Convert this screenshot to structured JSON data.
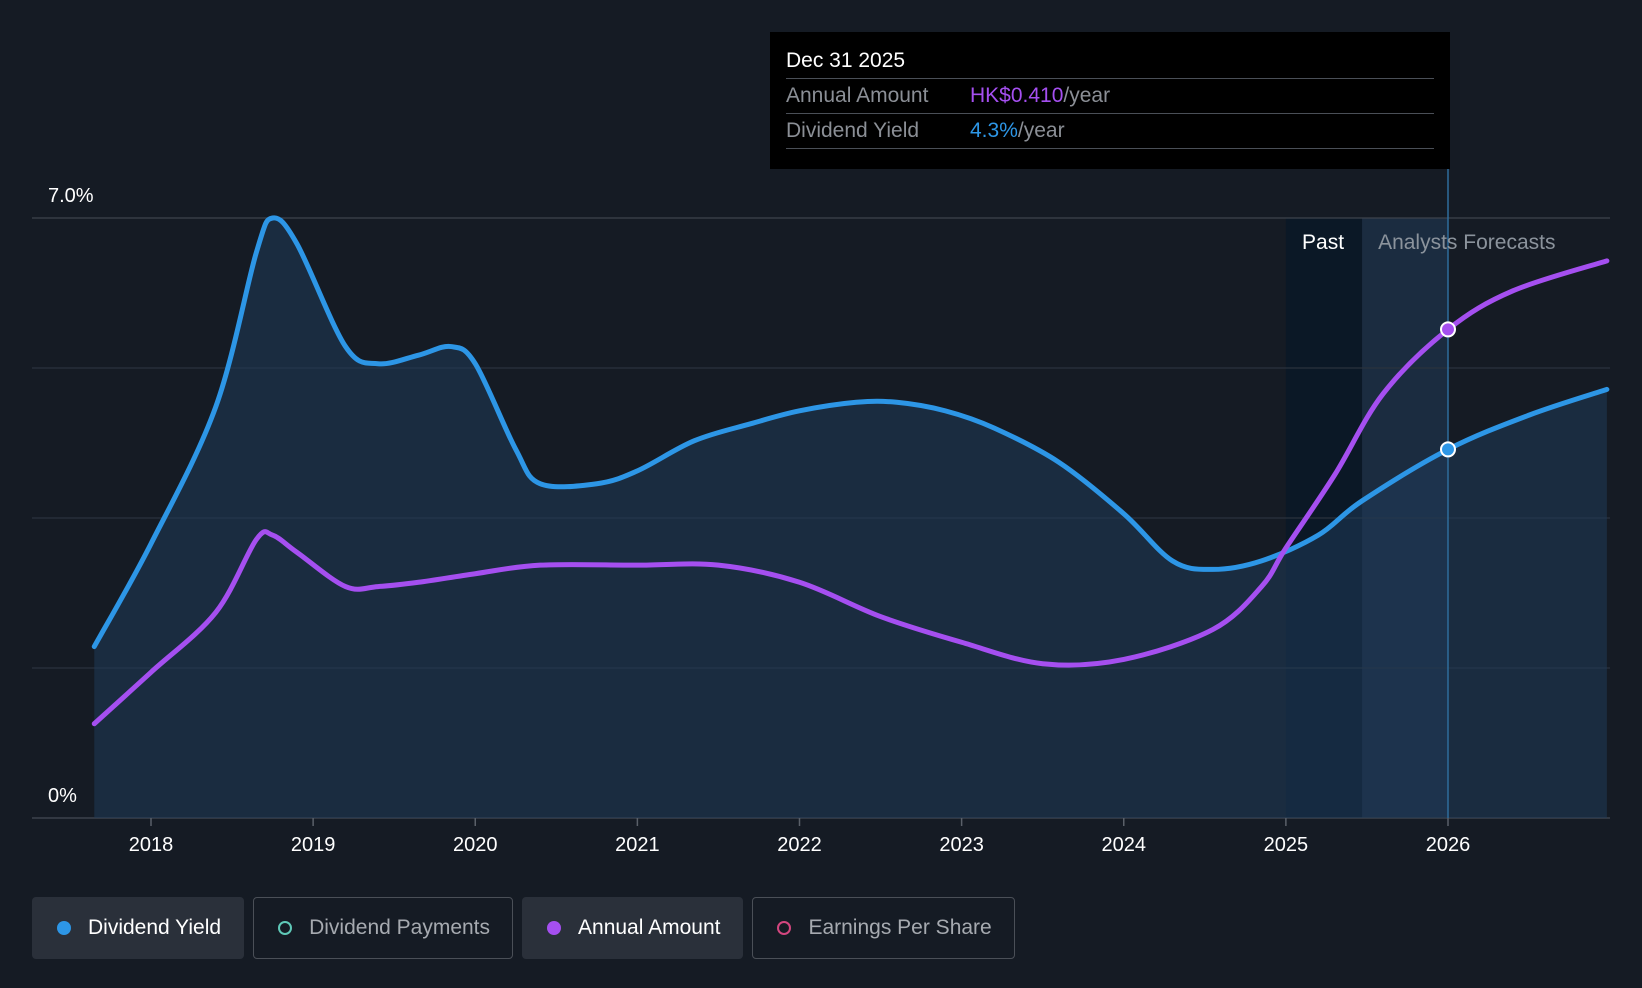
{
  "tooltip": {
    "date": "Dec 31 2025",
    "rows": [
      {
        "label": "Annual Amount",
        "value": "HK$0.410",
        "unit": "/year",
        "color": "#a54ff0"
      },
      {
        "label": "Dividend Yield",
        "value": "4.3%",
        "unit": "/year",
        "color": "#2d96e6"
      }
    ]
  },
  "regions": {
    "past_label": "Past",
    "forecast_label": "Analysts Forecasts"
  },
  "legend": [
    {
      "label": "Dividend Yield",
      "active": true,
      "color": "#2d96e6",
      "filled": true
    },
    {
      "label": "Dividend Payments",
      "active": false,
      "color": "#5fc9b8",
      "filled": false
    },
    {
      "label": "Annual Amount",
      "active": true,
      "color": "#a54ff0",
      "filled": true
    },
    {
      "label": "Earnings Per Share",
      "active": false,
      "color": "#d3467f",
      "filled": false
    }
  ],
  "chart_data": {
    "type": "line",
    "y_tick_labels": [
      "7.0%",
      "0%"
    ],
    "ylim": [
      0,
      7
    ],
    "xlim": [
      2017.5,
      2026.98
    ],
    "x_ticks": [
      2018,
      2019,
      2020,
      2021,
      2022,
      2023,
      2024,
      2025,
      2026
    ],
    "grid": true,
    "past_region": [
      2025.0,
      2025.47
    ],
    "forecast_region": [
      2025.47,
      2026.0
    ],
    "highlight_x": 2026.0,
    "series": [
      {
        "name": "Dividend Yield",
        "color": "#2d96e6",
        "area": true,
        "points": [
          [
            2017.65,
            2.0
          ],
          [
            2018.0,
            3.2
          ],
          [
            2018.4,
            4.8
          ],
          [
            2018.65,
            6.6
          ],
          [
            2018.75,
            7.0
          ],
          [
            2018.9,
            6.7
          ],
          [
            2019.2,
            5.5
          ],
          [
            2019.4,
            5.3
          ],
          [
            2019.65,
            5.4
          ],
          [
            2019.85,
            5.5
          ],
          [
            2020.0,
            5.3
          ],
          [
            2020.25,
            4.3
          ],
          [
            2020.4,
            3.9
          ],
          [
            2020.75,
            3.9
          ],
          [
            2021.0,
            4.05
          ],
          [
            2021.35,
            4.4
          ],
          [
            2021.7,
            4.6
          ],
          [
            2022.0,
            4.75
          ],
          [
            2022.35,
            4.85
          ],
          [
            2022.6,
            4.85
          ],
          [
            2022.9,
            4.75
          ],
          [
            2023.2,
            4.55
          ],
          [
            2023.6,
            4.15
          ],
          [
            2024.0,
            3.55
          ],
          [
            2024.3,
            3.0
          ],
          [
            2024.55,
            2.9
          ],
          [
            2024.85,
            3.0
          ],
          [
            2025.2,
            3.3
          ],
          [
            2025.47,
            3.7
          ],
          [
            2026.0,
            4.3
          ],
          [
            2026.5,
            4.7
          ],
          [
            2026.98,
            5.0
          ]
        ]
      },
      {
        "name": "Annual Amount",
        "color": "#a54ff0",
        "area": false,
        "points": [
          [
            2017.65,
            1.1
          ],
          [
            2018.0,
            1.7
          ],
          [
            2018.4,
            2.4
          ],
          [
            2018.65,
            3.25
          ],
          [
            2018.75,
            3.3
          ],
          [
            2018.9,
            3.1
          ],
          [
            2019.2,
            2.7
          ],
          [
            2019.4,
            2.7
          ],
          [
            2019.65,
            2.75
          ],
          [
            2020.0,
            2.85
          ],
          [
            2020.4,
            2.95
          ],
          [
            2021.0,
            2.95
          ],
          [
            2021.5,
            2.95
          ],
          [
            2022.0,
            2.75
          ],
          [
            2022.5,
            2.35
          ],
          [
            2023.0,
            2.05
          ],
          [
            2023.5,
            1.8
          ],
          [
            2024.0,
            1.85
          ],
          [
            2024.55,
            2.2
          ],
          [
            2024.85,
            2.7
          ],
          [
            2025.0,
            3.15
          ],
          [
            2025.3,
            4.0
          ],
          [
            2025.6,
            4.95
          ],
          [
            2026.0,
            5.7
          ],
          [
            2026.4,
            6.15
          ],
          [
            2026.98,
            6.5
          ]
        ]
      }
    ],
    "markers": [
      {
        "series": "Annual Amount",
        "x": 2026.0,
        "y": 5.7
      },
      {
        "series": "Dividend Yield",
        "x": 2026.0,
        "y": 4.3
      }
    ]
  }
}
